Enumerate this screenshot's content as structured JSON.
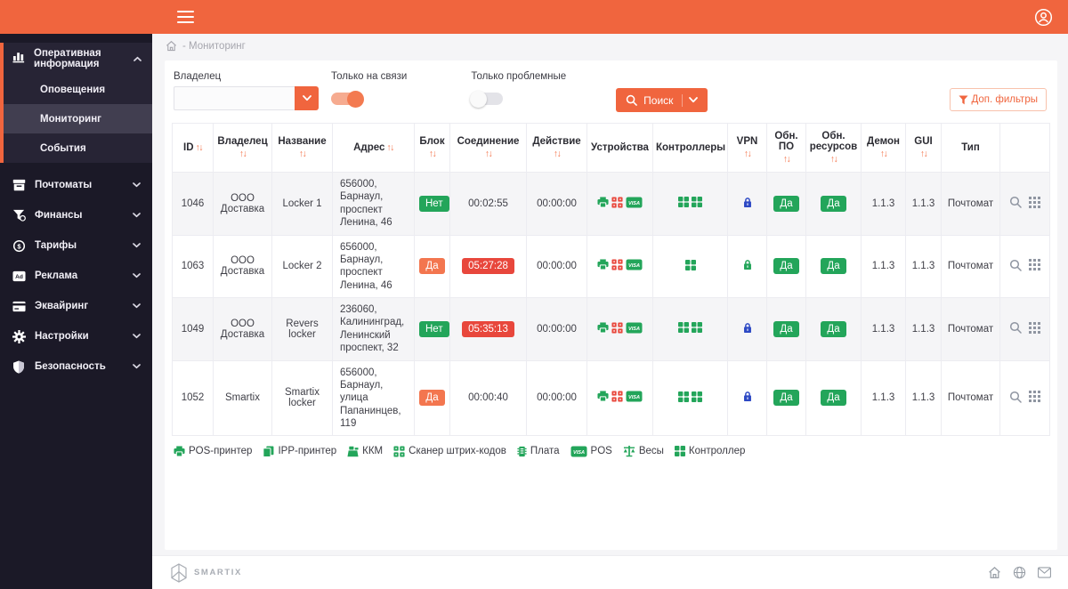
{
  "colors": {
    "green": "#23a55a",
    "red": "#e8473c",
    "blue": "#2d49c4",
    "orange": "#f0653e",
    "badge_orange": "#f3764f",
    "gray_icon": "#8f95a1"
  },
  "breadcrumb": {
    "text": "- Мониторинг"
  },
  "sidebar": {
    "group": {
      "label": "Оперативная информация",
      "items": [
        {
          "label": "Оповещения",
          "active": false
        },
        {
          "label": "Мониторинг",
          "active": true
        },
        {
          "label": "События",
          "active": false
        }
      ]
    },
    "items": [
      {
        "label": "Почтоматы"
      },
      {
        "label": "Финансы"
      },
      {
        "label": "Тарифы"
      },
      {
        "label": "Реклама"
      },
      {
        "label": "Эквайринг"
      },
      {
        "label": "Настройки"
      },
      {
        "label": "Безопасность"
      }
    ]
  },
  "filters": {
    "owner_label": "Владелец",
    "owner_value": "",
    "online_label": "Только на связи",
    "online_on": true,
    "problem_label": "Только проблемные",
    "problem_on": false,
    "search_label": "Поиск",
    "more_filters_label": "Доп. фильтры"
  },
  "table": {
    "columns": [
      {
        "key": "id",
        "label": "ID",
        "sort": true,
        "inline": true
      },
      {
        "key": "owner",
        "label": "Владелец",
        "sort": true
      },
      {
        "key": "name",
        "label": "Название",
        "sort": true
      },
      {
        "key": "address",
        "label": "Адрес",
        "sort": true,
        "inline": true
      },
      {
        "key": "block",
        "label": "Блок",
        "sort": true
      },
      {
        "key": "connection",
        "label": "Соединение",
        "sort": true
      },
      {
        "key": "action",
        "label": "Действие",
        "sort": true
      },
      {
        "key": "devices",
        "label": "Устройства",
        "sort": false
      },
      {
        "key": "controllers",
        "label": "Контроллеры",
        "sort": false
      },
      {
        "key": "vpn",
        "label": "VPN",
        "sort": true
      },
      {
        "key": "sw_update",
        "label": "Обн. ПО",
        "sort": true
      },
      {
        "key": "res_update",
        "label": "Обн. ресурсов",
        "sort": true
      },
      {
        "key": "daemon",
        "label": "Демон",
        "sort": true
      },
      {
        "key": "gui",
        "label": "GUI",
        "sort": true
      },
      {
        "key": "type",
        "label": "Тип",
        "sort": false
      },
      {
        "key": "actions",
        "label": "",
        "sort": false
      }
    ],
    "rows": [
      {
        "id": "1046",
        "owner": "ООО Доставка",
        "name": "Locker 1",
        "address": "656000, Барнаул, проспект Ленина, 46",
        "block": "Нет",
        "block_state": "ok",
        "connection": "00:02:55",
        "connection_alarm": false,
        "action": "00:00:00",
        "devices": [
          {
            "icon": "pos-printer",
            "status": "ok"
          },
          {
            "icon": "barcode-scanner",
            "status": "alert"
          },
          {
            "icon": "pos-terminal",
            "status": "ok"
          }
        ],
        "controllers": 2,
        "vpn": "blue",
        "sw_update": "Да",
        "res_update": "Да",
        "daemon": "1.1.3",
        "gui": "1.1.3",
        "type": "Почтомат"
      },
      {
        "id": "1063",
        "owner": "ООО Доставка",
        "name": "Locker 2",
        "address": "656000, Барнаул, проспект Ленина, 46",
        "block": "Да",
        "block_state": "blocked",
        "connection": "05:27:28",
        "connection_alarm": true,
        "action": "00:00:00",
        "devices": [
          {
            "icon": "pos-printer",
            "status": "ok"
          },
          {
            "icon": "barcode-scanner",
            "status": "alert"
          },
          {
            "icon": "pos-terminal",
            "status": "ok"
          }
        ],
        "controllers": 1,
        "vpn": "green",
        "sw_update": "Да",
        "res_update": "Да",
        "daemon": "1.1.3",
        "gui": "1.1.3",
        "type": "Почтомат"
      },
      {
        "id": "1049",
        "owner": "ООО Доставка",
        "name": "Revers locker",
        "address": "236060, Калининград, Ленинский проспект, 32",
        "block": "Нет",
        "block_state": "ok",
        "connection": "05:35:13",
        "connection_alarm": true,
        "action": "00:00:00",
        "devices": [
          {
            "icon": "pos-printer",
            "status": "ok"
          },
          {
            "icon": "barcode-scanner",
            "status": "alert"
          },
          {
            "icon": "pos-terminal",
            "status": "ok"
          }
        ],
        "controllers": 2,
        "vpn": "blue",
        "sw_update": "Да",
        "res_update": "Да",
        "daemon": "1.1.3",
        "gui": "1.1.3",
        "type": "Почтомат"
      },
      {
        "id": "1052",
        "owner": "Smartix",
        "name": "Smartix locker",
        "address": "656000, Барнаул, улица Папанинцев, 119",
        "block": "Да",
        "block_state": "blocked",
        "connection": "00:00:40",
        "connection_alarm": false,
        "action": "00:00:00",
        "devices": [
          {
            "icon": "pos-printer",
            "status": "ok"
          },
          {
            "icon": "barcode-scanner",
            "status": "alert"
          },
          {
            "icon": "pos-terminal",
            "status": "ok"
          }
        ],
        "controllers": 2,
        "vpn": "blue",
        "sw_update": "Да",
        "res_update": "Да",
        "daemon": "1.1.3",
        "gui": "1.1.3",
        "type": "Почтомат"
      }
    ]
  },
  "legend": [
    {
      "icon": "pos-printer",
      "label": "POS-принтер"
    },
    {
      "icon": "ipp-printer",
      "label": "IPP-принтер"
    },
    {
      "icon": "kkm",
      "label": "ККМ"
    },
    {
      "icon": "barcode-scanner",
      "label": "Сканер штрих-кодов"
    },
    {
      "icon": "board",
      "label": "Плата"
    },
    {
      "icon": "pos-terminal",
      "label": "POS"
    },
    {
      "icon": "scales",
      "label": "Весы"
    },
    {
      "icon": "controller",
      "label": "Контроллер"
    }
  ],
  "footer": {
    "brand": "SMARTIX"
  }
}
